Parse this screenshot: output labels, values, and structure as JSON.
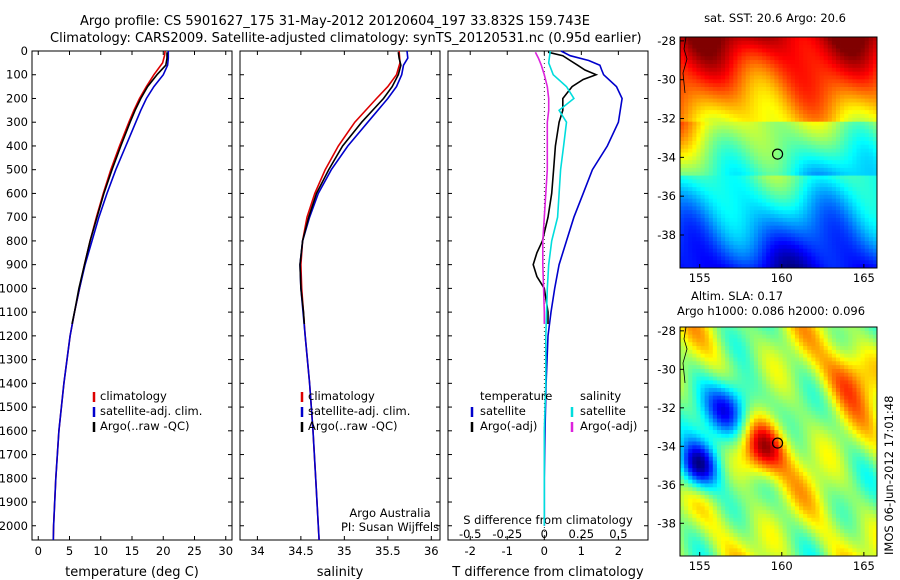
{
  "title_line1": "Argo profile: CS 5901627_175 31-May-2012 20120604_197 33.832S 159.743E",
  "title_line2": "Climatology: CARS2009. Satellite-adjusted climatology: synTS_20120531.nc (0.95d earlier)",
  "colors": {
    "climatology": "#dd0000",
    "satellite": "#0000cc",
    "argo": "#000000",
    "salinity_sat": "#00dddd",
    "salinity_argo": "#dd22dd"
  },
  "chart_data": [
    {
      "type": "line",
      "xlabel": "temperature (deg C)",
      "xlim": [
        -1,
        31
      ],
      "xticks": [
        0,
        5,
        10,
        15,
        20,
        25,
        30
      ],
      "ylim": [
        2060,
        0
      ],
      "yticks": [
        0,
        100,
        200,
        300,
        400,
        500,
        600,
        700,
        800,
        900,
        1000,
        1100,
        1200,
        1300,
        1400,
        1500,
        1600,
        1700,
        1800,
        1900,
        2000
      ],
      "legend": [
        "climatology",
        "satellite-adj. clim.",
        "Argo(..raw -QC)"
      ],
      "legend_placement": "lower-center",
      "series": [
        {
          "name": "climatology",
          "color": "#dd0000",
          "depth": [
            0,
            20,
            50,
            100,
            150,
            200,
            250,
            300,
            400,
            500,
            600,
            700,
            800,
            900,
            1000,
            1100,
            1200,
            1400,
            1600,
            1800,
            2000,
            2060
          ],
          "values": [
            20.3,
            20.2,
            19.9,
            18.5,
            17.3,
            16.2,
            15.3,
            14.5,
            13.0,
            11.6,
            10.4,
            9.3,
            8.3,
            7.4,
            6.6,
            5.8,
            5.1,
            4.1,
            3.3,
            2.8,
            2.45,
            2.4
          ]
        },
        {
          "name": "satellite-adj. clim.",
          "color": "#0000cc",
          "depth": [
            0,
            30,
            60,
            100,
            150,
            200,
            250,
            300,
            400,
            500,
            600,
            700,
            800,
            900,
            1000,
            1100,
            1200,
            1400,
            1600,
            1800,
            2000,
            2060
          ],
          "values": [
            20.8,
            20.8,
            20.7,
            20.0,
            18.5,
            17.3,
            16.4,
            15.6,
            14.0,
            12.4,
            11.0,
            9.7,
            8.6,
            7.5,
            6.6,
            5.8,
            5.1,
            4.1,
            3.3,
            2.8,
            2.45,
            2.4
          ]
        },
        {
          "name": "Argo(..raw -QC)",
          "color": "#000000",
          "depth": [
            5,
            30,
            60,
            100,
            150,
            200,
            250,
            300,
            400,
            500,
            600,
            700,
            800,
            900,
            1000,
            1100,
            1150
          ],
          "values": [
            20.6,
            20.6,
            20.4,
            19.0,
            17.5,
            16.4,
            15.5,
            14.7,
            13.2,
            11.8,
            10.5,
            9.4,
            8.3,
            7.4,
            6.5,
            5.8,
            5.4
          ]
        }
      ]
    },
    {
      "type": "line",
      "xlabel": "salinity",
      "xlim": [
        33.8,
        36.1
      ],
      "xticks": [
        34,
        34.5,
        35,
        35.5,
        36
      ],
      "ylim": [
        2060,
        0
      ],
      "legend": [
        "climatology",
        "satellite-adj. clim.",
        "Argo(..raw -QC)"
      ],
      "legend_placement": "lower-center",
      "annotation": [
        "Argo Australia",
        "PI: Susan Wijffels"
      ],
      "series": [
        {
          "name": "climatology",
          "color": "#dd0000",
          "depth": [
            0,
            50,
            100,
            150,
            200,
            300,
            400,
            500,
            600,
            700,
            800,
            900,
            1000,
            1200,
            1400,
            1600,
            1800,
            2000,
            2060
          ],
          "values": [
            35.63,
            35.64,
            35.6,
            35.5,
            35.37,
            35.12,
            34.93,
            34.78,
            34.66,
            34.57,
            34.52,
            34.5,
            34.51,
            34.55,
            34.6,
            34.64,
            34.67,
            34.7,
            34.71
          ]
        },
        {
          "name": "satellite-adj. clim.",
          "color": "#0000cc",
          "depth": [
            0,
            30,
            60,
            100,
            150,
            200,
            300,
            400,
            500,
            600,
            700,
            800,
            900,
            1000,
            1200,
            1400,
            1600,
            1800,
            2000,
            2060
          ],
          "values": [
            35.72,
            35.73,
            35.68,
            35.66,
            35.6,
            35.5,
            35.27,
            35.04,
            34.85,
            34.7,
            34.6,
            34.52,
            34.49,
            34.5,
            34.55,
            34.6,
            34.64,
            34.67,
            34.7,
            34.71
          ]
        },
        {
          "name": "Argo(..raw -QC)",
          "color": "#000000",
          "depth": [
            5,
            30,
            60,
            100,
            150,
            200,
            300,
            400,
            500,
            600,
            700,
            800,
            900,
            1000,
            1100,
            1150
          ],
          "values": [
            35.62,
            35.63,
            35.65,
            35.62,
            35.55,
            35.45,
            35.2,
            34.98,
            34.82,
            34.68,
            34.59,
            34.52,
            34.49,
            34.5,
            34.53,
            34.54
          ]
        }
      ]
    },
    {
      "type": "line",
      "xlabel": "T difference from climatology",
      "xlabel_top": "S difference from climatology",
      "xlim": [
        -2.6,
        2.8
      ],
      "xticks": [
        -2,
        -1,
        0,
        1,
        2
      ],
      "xticks_top": [
        -0.5,
        -0.25,
        0,
        0.25,
        0.5
      ],
      "ylim": [
        2060,
        0
      ],
      "legend_left": {
        "title": "temperature",
        "items": [
          "satellite",
          "Argo(-adj)"
        ]
      },
      "legend_right": {
        "title": "salinity",
        "items": [
          "satellite",
          "Argo(-adj)"
        ]
      },
      "series": [
        {
          "name": "satellite",
          "color": "#0000cc",
          "depth": [
            0,
            20,
            40,
            60,
            80,
            100,
            150,
            200,
            300,
            400,
            500,
            600,
            700,
            800,
            900,
            1000,
            1100,
            1200,
            1400,
            1600,
            1800,
            2000
          ],
          "values": [
            0.45,
            0.7,
            1.2,
            1.5,
            1.55,
            1.6,
            1.95,
            2.1,
            2.0,
            1.7,
            1.3,
            1.05,
            0.8,
            0.6,
            0.4,
            0.28,
            0.18,
            0.1,
            0.05,
            0.02,
            0.0,
            0.0
          ]
        },
        {
          "name": "Argo(-adj)",
          "color": "#000000",
          "depth": [
            5,
            20,
            40,
            60,
            80,
            100,
            120,
            150,
            200,
            250,
            300,
            400,
            500,
            600,
            700,
            800,
            850,
            900,
            950,
            1000,
            1100,
            1150
          ],
          "values": [
            0.1,
            0.5,
            0.7,
            0.9,
            1.1,
            1.4,
            1.05,
            0.75,
            0.5,
            0.5,
            0.4,
            0.3,
            0.25,
            0.2,
            0.1,
            -0.05,
            -0.2,
            -0.3,
            -0.2,
            0.0,
            0.1,
            0.1
          ]
        },
        {
          "name": "satellite",
          "color": "#00dddd",
          "depth": [
            0,
            50,
            100,
            150,
            200,
            250,
            300,
            400,
            500,
            600,
            700,
            800,
            900,
            1000,
            1200,
            1400,
            1600,
            1800,
            2000
          ],
          "values": [
            0.04,
            0.03,
            0.06,
            0.15,
            0.2,
            0.1,
            0.15,
            0.13,
            0.11,
            0.1,
            0.09,
            0.05,
            0.03,
            0.02,
            0.01,
            0.01,
            0.0,
            0.0,
            0.0
          ]
        },
        {
          "name": "Argo(-adj)",
          "color": "#dd22dd",
          "depth": [
            5,
            30,
            60,
            100,
            150,
            200,
            250,
            300,
            400,
            500,
            600,
            700,
            800,
            900,
            1000,
            1100,
            1150
          ],
          "values": [
            -0.06,
            -0.04,
            -0.02,
            0.0,
            0.02,
            0.03,
            0.03,
            0.02,
            0.02,
            0.02,
            0.01,
            0.0,
            -0.01,
            -0.01,
            -0.005,
            0.0,
            0.0
          ]
        }
      ]
    },
    {
      "type": "heatmap",
      "title": "sat. SST: 20.6  Argo: 20.6",
      "xticks": [
        155,
        160,
        165
      ],
      "yticks": [
        -28,
        -30,
        -32,
        -34,
        -36,
        -38
      ],
      "xlim": [
        153.8,
        165.8
      ],
      "ylim": [
        -39.7,
        -27.8
      ],
      "marker": {
        "lon": 159.743,
        "lat": -33.832
      }
    },
    {
      "type": "heatmap",
      "title": "Altim. SLA: 0.17",
      "subtitle": "Argo h1000: 0.086 h2000: 0.096",
      "xticks": [
        155,
        160,
        165
      ],
      "yticks": [
        -28,
        -30,
        -32,
        -34,
        -36,
        -38
      ],
      "xlim": [
        153.8,
        165.8
      ],
      "ylim": [
        -39.7,
        -27.8
      ],
      "marker": {
        "lon": 159.743,
        "lat": -33.832
      }
    }
  ],
  "stamp": "IMOS 06-Jun-2012 17:01:48"
}
